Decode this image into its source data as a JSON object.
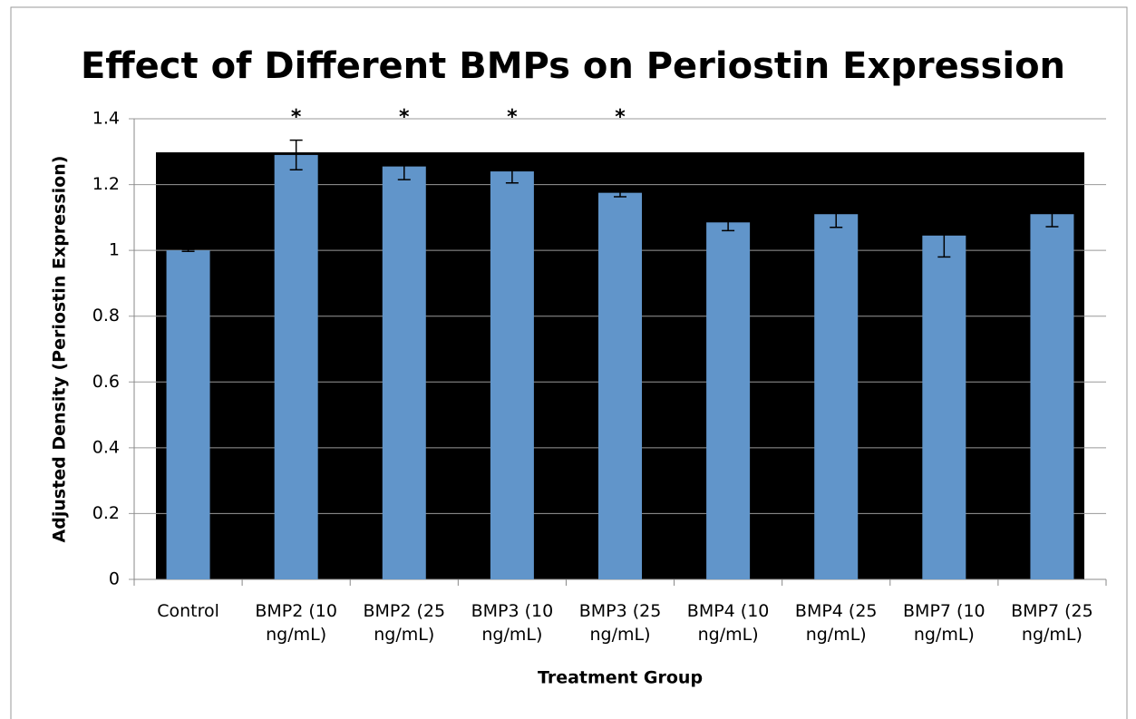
{
  "chart_data": {
    "type": "bar",
    "title": "Effect of Different BMPs on Periostin Expression",
    "x_label": "Treatment Group",
    "y_label": "Adjusted Density (Periostin Expression)",
    "categories": [
      "Control",
      "BMP2 (10 ng/mL)",
      "BMP2 (25 ng/mL)",
      "BMP3 (10 ng/mL)",
      "BMP3 (25 ng/mL)",
      "BMP4 (10 ng/mL)",
      "BMP4 (25 ng/mL)",
      "BMP7 (10 ng/mL)",
      "BMP7 (25 ng/mL)"
    ],
    "values": [
      1.0,
      1.29,
      1.255,
      1.24,
      1.175,
      1.085,
      1.11,
      1.045,
      1.11
    ],
    "errors": [
      0.003,
      0.045,
      0.04,
      0.035,
      0.012,
      0.025,
      0.04,
      0.065,
      0.038
    ],
    "significance": [
      null,
      "*",
      "*",
      "*",
      "*",
      null,
      null,
      null,
      null
    ],
    "color": "#6195ca",
    "ylim": [
      0,
      1.4
    ],
    "yticks": [
      0,
      0.2,
      0.4,
      0.6,
      0.8,
      1,
      1.2,
      1.4
    ],
    "grid": true
  }
}
